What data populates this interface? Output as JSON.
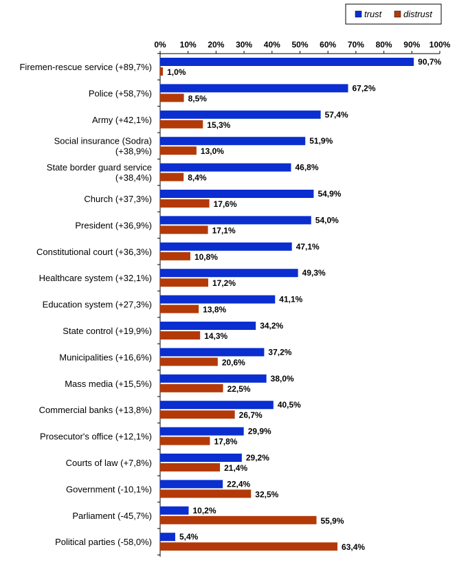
{
  "chart_data": {
    "type": "bar",
    "orientation": "horizontal",
    "x_axis_position": "top",
    "xlim": [
      0,
      100
    ],
    "x_ticks": [
      "0%",
      "10%",
      "20%",
      "30%",
      "40%",
      "50%",
      "60%",
      "70%",
      "80%",
      "90%",
      "100%"
    ],
    "legend_position": "top-right",
    "categories": [
      "Firemen-rescue service (+89,7%)",
      "Police (+58,7%)",
      "Army (+42,1%)",
      "Social insurance (Sodra) (+38,9%)",
      "State border guard service (+38,4%)",
      "Church (+37,3%)",
      "President (+36,9%)",
      "Constitutional court (+36,3%)",
      "Healthcare system (+32,1%)",
      "Education system (+27,3%)",
      "State control (+19,9%)",
      "Municipalities (+16,6%)",
      "Mass media (+15,5%)",
      "Commercial banks (+13,8%)",
      "Prosecutor's office (+12,1%)",
      "Courts of law (+7,8%)",
      "Government (-10,1%)",
      "Parliament (-45,7%)",
      "Political parties (-58,0%)"
    ],
    "series": [
      {
        "name": "trust",
        "color": "#0a2ecf",
        "values": [
          90.7,
          67.2,
          57.4,
          51.9,
          46.8,
          54.9,
          54.0,
          47.1,
          49.3,
          41.1,
          34.2,
          37.2,
          38.0,
          40.5,
          29.9,
          29.2,
          22.4,
          10.2,
          5.4
        ],
        "labels": [
          "90,7%",
          "67,2%",
          "57,4%",
          "51,9%",
          "46,8%",
          "54,9%",
          "54,0%",
          "47,1%",
          "49,3%",
          "41,1%",
          "34,2%",
          "37,2%",
          "38,0%",
          "40,5%",
          "29,9%",
          "29,2%",
          "22,4%",
          "10,2%",
          "5,4%"
        ]
      },
      {
        "name": "distrust",
        "color": "#b33a08",
        "values": [
          1.0,
          8.5,
          15.3,
          13.0,
          8.4,
          17.6,
          17.1,
          10.8,
          17.2,
          13.8,
          14.3,
          20.6,
          22.5,
          26.7,
          17.8,
          21.4,
          32.5,
          55.9,
          63.4
        ],
        "labels": [
          "1,0%",
          "8,5%",
          "15,3%",
          "13,0%",
          "8,4%",
          "17,6%",
          "17,1%",
          "10,8%",
          "17,2%",
          "13,8%",
          "14,3%",
          "20,6%",
          "22,5%",
          "26,7%",
          "17,8%",
          "21,4%",
          "32,5%",
          "55,9%",
          "63,4%"
        ]
      }
    ]
  }
}
